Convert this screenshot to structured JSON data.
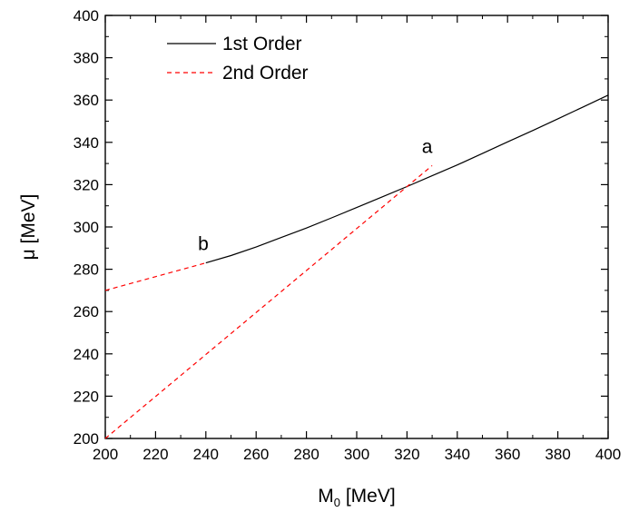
{
  "chart_data": {
    "type": "line",
    "xlabel": "M",
    "xlabel_subscript": "0",
    "xlabel_unit": " [MeV]",
    "ylabel": "μ [MeV]",
    "xlim": [
      200,
      400
    ],
    "ylim": [
      200,
      400
    ],
    "x_ticks": [
      200,
      220,
      240,
      260,
      280,
      300,
      320,
      340,
      360,
      380,
      400
    ],
    "y_ticks": [
      200,
      220,
      240,
      260,
      280,
      300,
      320,
      340,
      360,
      380,
      400
    ],
    "legend_position": "top-left",
    "series": [
      {
        "name": "1st Order",
        "style": "solid",
        "color": "#000000",
        "segments": [
          [
            [
              240,
              283
            ],
            [
              250,
              286.5
            ],
            [
              260,
              290.5
            ],
            [
              270,
              295
            ],
            [
              280,
              299.5
            ],
            [
              290,
              304.3
            ],
            [
              300,
              309.2
            ],
            [
              310,
              314.1
            ],
            [
              320,
              319.1
            ],
            [
              330,
              324.2
            ],
            [
              340,
              329.3
            ],
            [
              350,
              334.7
            ],
            [
              360,
              340.2
            ],
            [
              370,
              345.6
            ],
            [
              380,
              351.1
            ],
            [
              390,
              356.7
            ],
            [
              400,
              362.3
            ]
          ]
        ]
      },
      {
        "name": "2nd Order",
        "style": "dashed",
        "color": "#ff0000",
        "segments": [
          [
            [
              200,
              270
            ],
            [
              240,
              283
            ]
          ],
          [
            [
              200,
              200
            ],
            [
              330,
              329
            ]
          ]
        ]
      }
    ],
    "annotations": [
      {
        "text": "a",
        "x": 328,
        "y": 335
      },
      {
        "text": "b",
        "x": 239,
        "y": 289
      }
    ]
  }
}
